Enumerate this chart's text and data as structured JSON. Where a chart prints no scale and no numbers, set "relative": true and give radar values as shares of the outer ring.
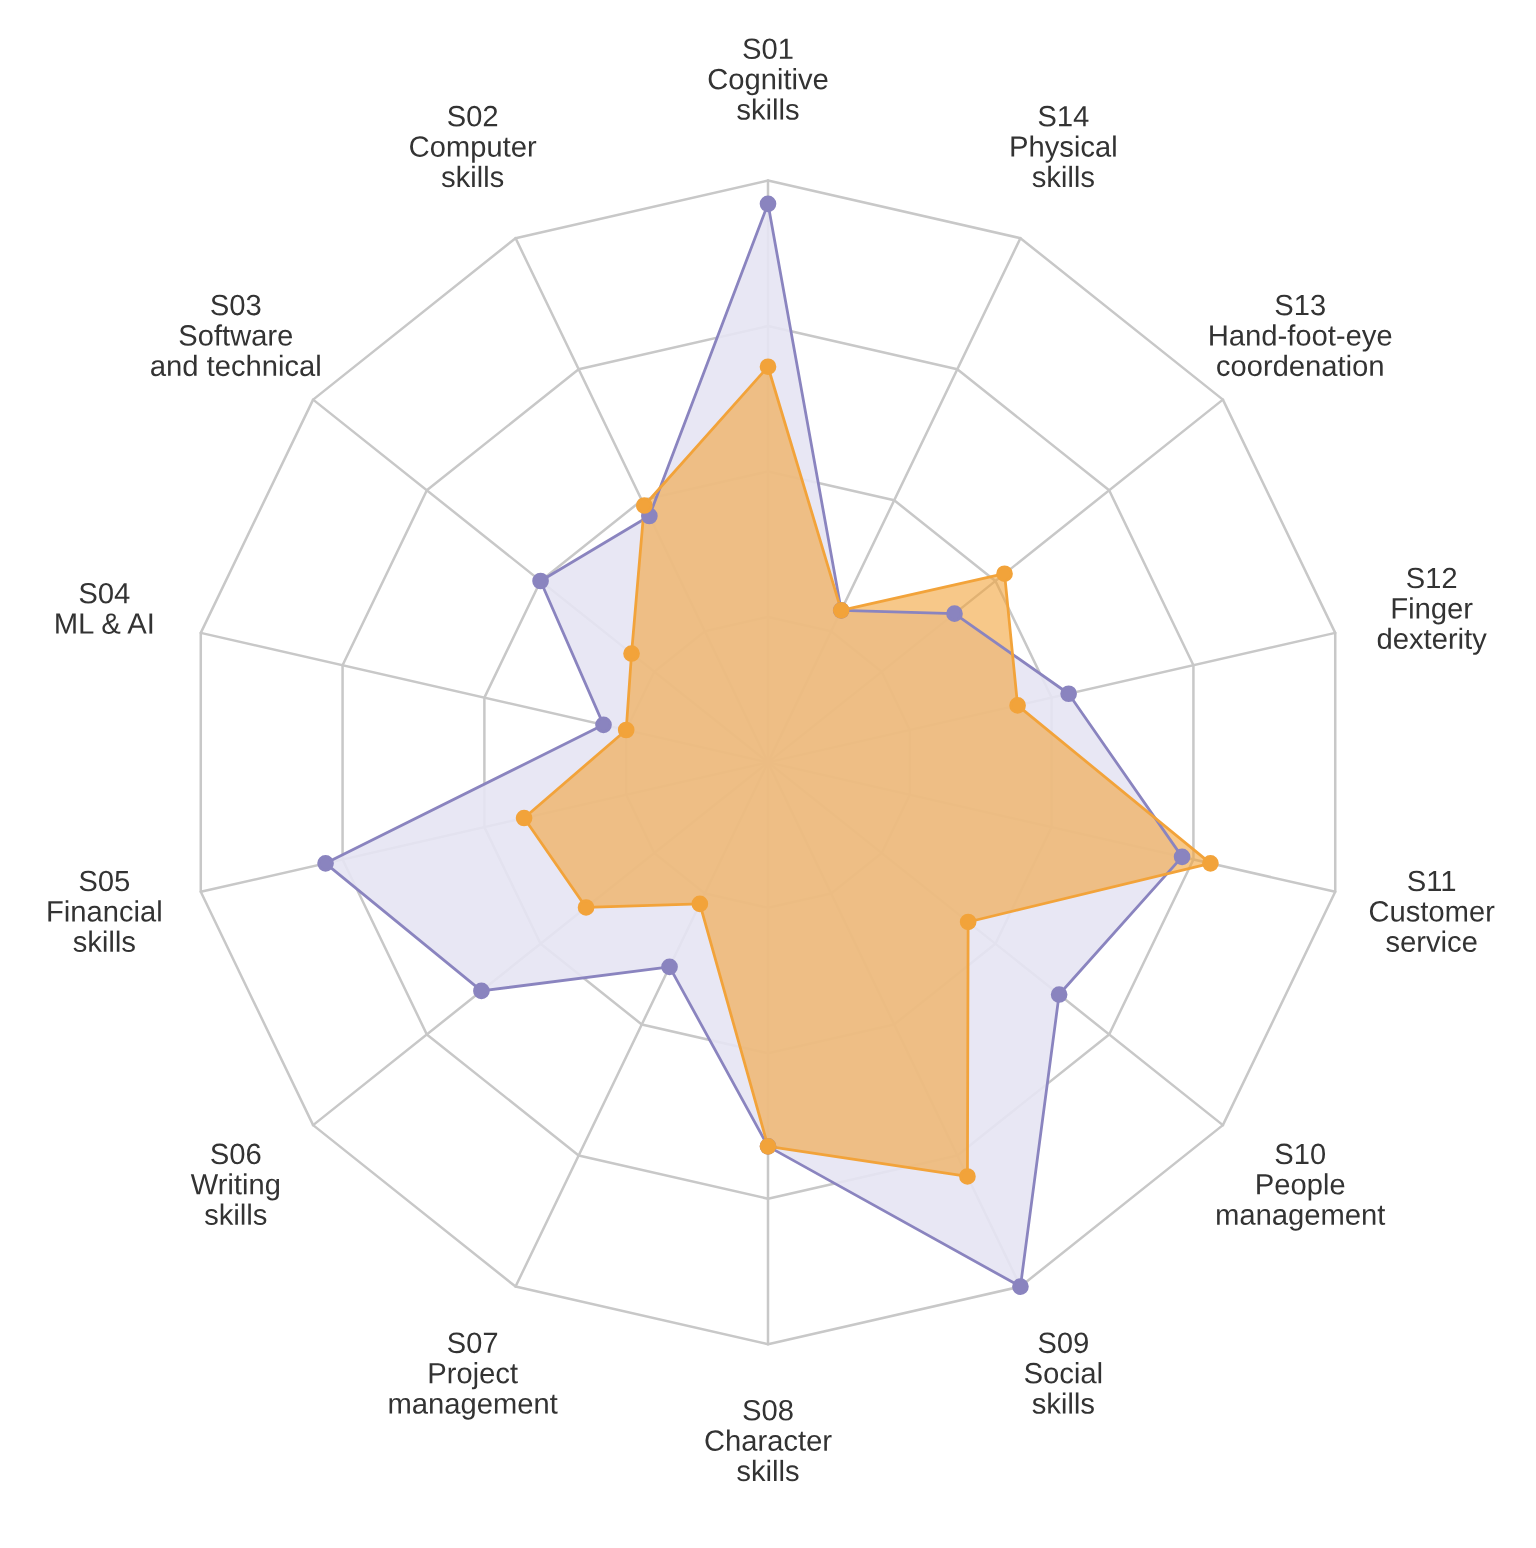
{
  "chart_data": {
    "type": "radar",
    "relative": true,
    "grid": true,
    "legend": false,
    "marker": "circle",
    "line_style": "solid",
    "categories": [
      "S01\nCognitive\nskills",
      "S14\nPhysical\nskills",
      "S13\nHand-foot-eye\ncoordenation",
      "S12\nFinger\ndexterity",
      "S11\nCustomer\nservice",
      "S10\nPeople\nmanagement",
      "S09\nSocial\nskills",
      "S08\nCharacter\nskills",
      "S07\nProject\nmanagement",
      "S06\nWriting\nskills",
      "S05\nFinancial\nskills",
      "S04\nML & AI",
      "S03\nSoftware\nand technical",
      "S02\nComputer\nskills"
    ],
    "series": [
      {
        "color": "#8a84bf",
        "values": [
          0.96,
          0.29,
          0.41,
          0.53,
          0.73,
          0.64,
          1.0,
          0.66,
          0.39,
          0.63,
          0.78,
          0.29,
          0.5,
          0.47
        ]
      },
      {
        "color": "#f2a33a",
        "values": [
          0.68,
          0.29,
          0.52,
          0.44,
          0.78,
          0.44,
          0.79,
          0.66,
          0.27,
          0.4,
          0.43,
          0.25,
          0.3,
          0.49
        ]
      }
    ]
  }
}
